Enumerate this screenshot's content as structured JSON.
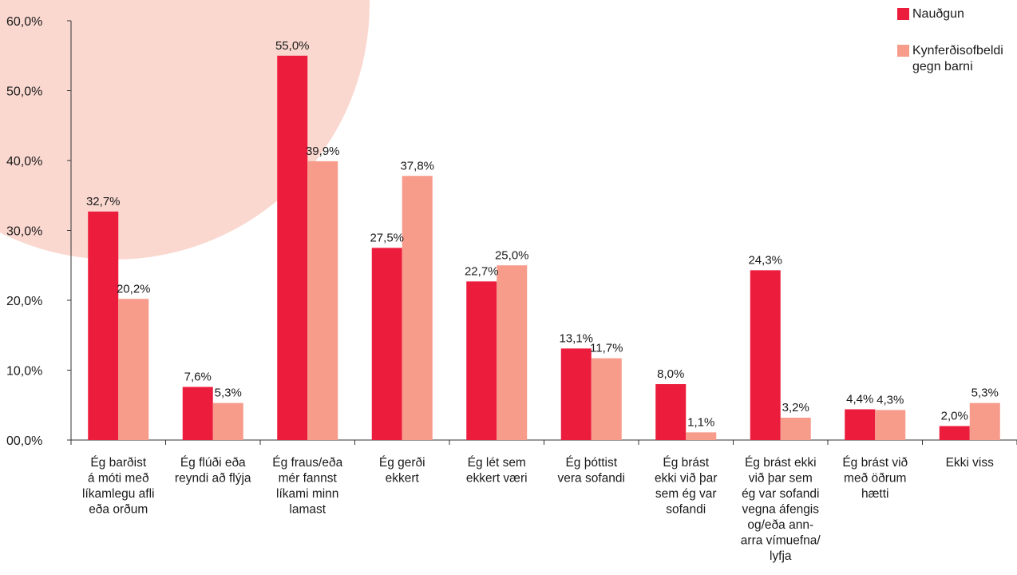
{
  "colors": {
    "background_circle": "#fad8d0",
    "nauthgun": "#ec1c3d",
    "kynferdis": "#f79b8b",
    "axis": "#333333"
  },
  "chart_data": {
    "type": "bar",
    "title": "",
    "xlabel": "",
    "ylabel": "",
    "ylim": [
      0,
      60
    ],
    "yticks": [
      "00,0%",
      "10,0%",
      "20,0%",
      "30,0%",
      "40,0%",
      "50,0%",
      "60,0%"
    ],
    "grid": false,
    "legend_position": "top-right",
    "categories": [
      [
        "Ég barðist",
        "á móti með",
        "líkamlegu afli",
        "eða orðum"
      ],
      [
        "Ég flúði eða",
        "reyndi að flýja"
      ],
      [
        "Ég fraus/eða",
        "mér fannst",
        "líkami minn",
        "lamast"
      ],
      [
        "Ég gerði",
        "ekkert"
      ],
      [
        "Ég lét sem",
        "ekkert væri"
      ],
      [
        "Ég þóttist",
        "vera sofandi"
      ],
      [
        "Ég brást",
        "ekki við þar",
        "sem ég var",
        "sofandi"
      ],
      [
        "Ég brást ekki",
        "við þar sem",
        "ég var sofandi",
        "vegna áfengis",
        "og/eða ann-",
        "arra vímuefna/",
        "lyfja"
      ],
      [
        "Ég brást við",
        "með öðrum",
        "hætti"
      ],
      [
        "Ekki viss"
      ]
    ],
    "series": [
      {
        "name": "Nauðgun",
        "values": [
          32.7,
          7.6,
          55.0,
          27.5,
          22.7,
          13.1,
          8.0,
          24.3,
          4.4,
          2.0
        ],
        "labels": [
          "32,7%",
          "7,6%",
          "55,0%",
          "27,5%",
          "22,7%",
          "13,1%",
          "8,0%",
          "24,3%",
          "4,4%",
          "2,0%"
        ]
      },
      {
        "name": "Kynferðisofbeldi\ngegn barni",
        "values": [
          20.2,
          5.3,
          39.9,
          37.8,
          25.0,
          11.7,
          1.1,
          3.2,
          4.3,
          5.3
        ],
        "labels": [
          "20,2%",
          "5,3%",
          "39,9%",
          "37,8%",
          "25,0%",
          "11,7%",
          "1,1%",
          "3,2%",
          "4,3%",
          "5,3%"
        ]
      }
    ]
  }
}
